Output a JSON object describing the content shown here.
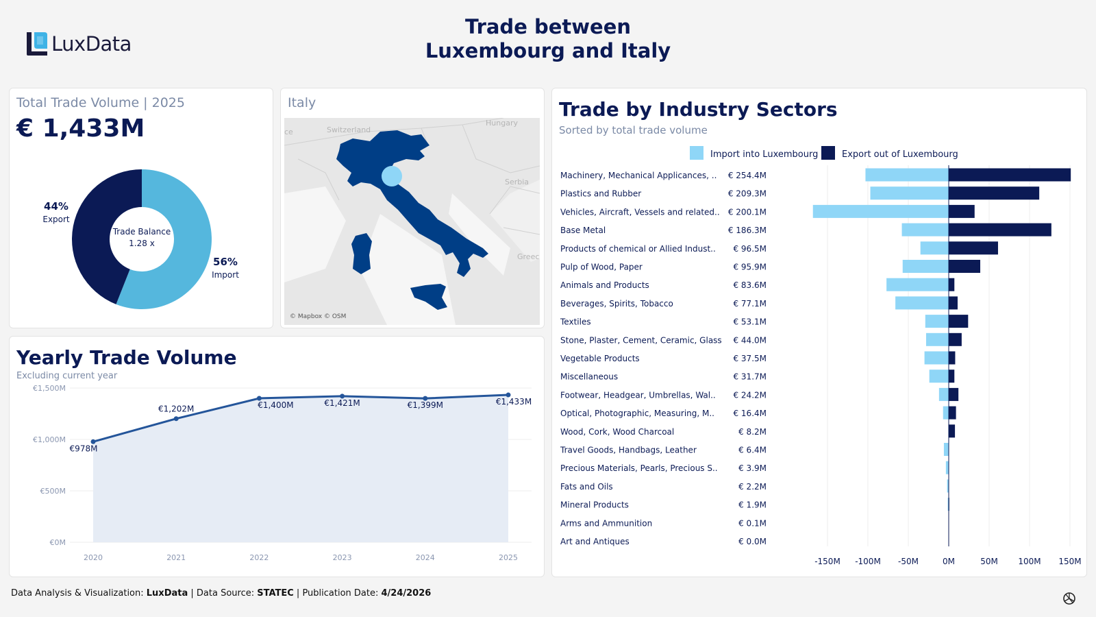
{
  "header": {
    "logo_text": "LuxData",
    "title_line1": "Trade between",
    "title_line2": "Luxembourg and Italy"
  },
  "colors": {
    "navy": "#0b1a55",
    "import_light": "#8fd6f7",
    "donut_import": "#55b7dd",
    "line": "#24559a",
    "area": "#e6ecf5",
    "map_country": "#003e86",
    "map_marker": "#8fd6f7"
  },
  "total_card": {
    "title": "Total Trade Volume | 2025",
    "value": "€ 1,433M",
    "center_label_line1": "Trade Balance",
    "center_label_line2": "1.28 x",
    "export_pct": "44%",
    "export_label": "Export",
    "import_pct": "56%",
    "import_label": "Import"
  },
  "map_card": {
    "title": "Italy",
    "attribution": "© Mapbox © OSM",
    "labels": {
      "switzerland": "Switzerland",
      "hungary": "Hungary",
      "serbia": "Serbia",
      "greece": "Greec",
      "france": "ce"
    }
  },
  "yearly_card": {
    "title": "Yearly Trade Volume",
    "subtitle": "Excluding current year"
  },
  "sectors_card": {
    "title": "Trade by Industry Sectors",
    "subtitle": "Sorted by total trade volume",
    "legend_import": "Import into Luxembourg",
    "legend_export": "Export out of Luxembourg"
  },
  "footer": {
    "prefix": "Data Analysis & Visualization: ",
    "brand": "LuxData",
    "sep1": " | Data Source: ",
    "source": "STATEC",
    "sep2": " | Publication Date: ",
    "date": "4/24/2026"
  },
  "chart_data": [
    {
      "type": "pie",
      "title": "",
      "slices": [
        {
          "name": "Import",
          "value": 56
        },
        {
          "name": "Export",
          "value": 44
        }
      ]
    },
    {
      "type": "area",
      "title": "Yearly Trade Volume",
      "x": [
        "2020",
        "2021",
        "2022",
        "2023",
        "2024",
        "2025"
      ],
      "values": [
        978,
        1202,
        1400,
        1421,
        1399,
        1433
      ],
      "data_labels": [
        "€978M",
        "€1,202M",
        "€1,400M",
        "€1,421M",
        "€1,399M",
        "€1,433M"
      ],
      "ylim": [
        0,
        1500
      ],
      "y_ticks": [
        0,
        500,
        1000,
        1500
      ],
      "y_tick_labels": [
        "€0M",
        "€500M",
        "€1,000M",
        "€1,500M"
      ],
      "grid": true
    },
    {
      "type": "bar",
      "orientation": "horizontal",
      "title": "Trade by Industry Sectors",
      "categories": [
        "Machinery, Mechanical Applicances, ..",
        "Plastics and Rubber",
        "Vehicles, Aircraft, Vessels and related..",
        "Base Metal",
        "Products of chemical or Allied Indust..",
        "Pulp of Wood, Paper",
        "Animals and Products",
        "Beverages, Spirits, Tobacco",
        "Textiles",
        "Stone, Plaster, Cement, Ceramic, Glass",
        "Vegetable Products",
        "Miscellaneous",
        "Footwear, Headgear, Umbrellas, Wal..",
        "Optical, Photographic, Measuring, M..",
        "Wood, Cork, Wood Charcoal",
        "Travel Goods, Handbags, Leather",
        "Precious Materials, Pearls, Precious S..",
        "Fats and Oils",
        "Mineral Products",
        "Arms and Ammunition",
        "Art and Antiques"
      ],
      "totals": [
        "€ 254.4M",
        "€ 209.3M",
        "€ 200.1M",
        "€ 186.3M",
        "€ 96.5M",
        "€ 95.9M",
        "€ 83.6M",
        "€ 77.1M",
        "€ 53.1M",
        "€ 44.0M",
        "€ 37.5M",
        "€ 31.7M",
        "€ 24.2M",
        "€ 16.4M",
        "€ 8.2M",
        "€ 6.4M",
        "€ 3.9M",
        "€ 2.2M",
        "€ 1.9M",
        "€ 0.1M",
        "€ 0.0M"
      ],
      "series": [
        {
          "name": "Import into Luxembourg",
          "values": [
            -103,
            -97,
            -168,
            -58,
            -35,
            -57,
            -77,
            -66,
            -29,
            -28,
            -30,
            -24,
            -12,
            -7,
            -0.5,
            -6,
            -3.5,
            -2,
            -1.2,
            -0.1,
            0
          ]
        },
        {
          "name": "Export out of Luxembourg",
          "values": [
            151,
            112,
            32,
            127,
            61,
            39,
            7,
            11,
            24,
            16,
            8,
            7,
            12,
            9,
            7.7,
            0.4,
            0.4,
            0.2,
            0.7,
            0,
            0
          ]
        }
      ],
      "xlim": [
        -150,
        150
      ],
      "x_ticks": [
        -150,
        -100,
        -50,
        0,
        50,
        100,
        150
      ],
      "x_tick_labels": [
        "-150M",
        "-100M",
        "-50M",
        "0M",
        "50M",
        "100M",
        "150M"
      ],
      "legend": "top"
    }
  ]
}
